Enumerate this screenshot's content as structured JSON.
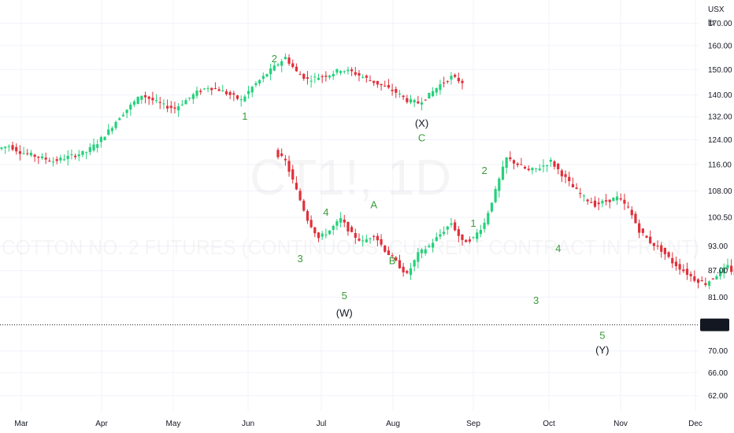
{
  "chart_data": {
    "type": "candlestick",
    "y_scale": "log",
    "ylim": [
      60,
      178
    ],
    "currency": "USX",
    "unit": "lb",
    "y_ticks": [
      "62.00",
      "66.00",
      "70.00",
      "75.11",
      "81.00",
      "87.00",
      "93.00",
      "100.50",
      "108.00",
      "116.00",
      "124.00",
      "132.00",
      "140.00",
      "150.00",
      "160.00",
      "170.00"
    ],
    "y_tick_values": [
      62,
      66,
      70,
      75.11,
      81,
      87,
      93,
      100.5,
      108,
      116,
      124,
      132,
      140,
      150,
      160,
      170
    ],
    "x_ticks": [
      "Mar",
      "Apr",
      "May",
      "Jun",
      "Jul",
      "Aug",
      "Sep",
      "Oct",
      "Nov",
      "Dec"
    ],
    "last_price": "75.11",
    "last_price_value": 75.11,
    "last_price_color": "#131722",
    "up_color": "#26d07c",
    "down_color": "#e0303a",
    "watermark_symbol": "CT1!, 1D",
    "watermark_name": "COTTON NO. 2 FUTURES (CONTINUOUS: CURRENT CONTRACT IN FRONT)",
    "segments": [
      {
        "start_day": 0,
        "points": [
          121,
          122,
          120,
          119,
          118,
          117,
          118,
          119,
          120,
          123,
          127,
          132,
          136,
          140,
          138,
          136,
          135,
          138,
          141,
          143,
          142,
          140,
          138,
          143,
          147,
          151,
          155,
          149,
          146,
          147,
          148,
          150,
          149,
          147,
          145,
          143,
          141,
          138,
          137,
          140,
          144,
          147,
          145
        ]
      },
      {
        "start_day": 75,
        "points": [
          120,
          117,
          108,
          100,
          95,
          97,
          100,
          96,
          94,
          96,
          92,
          89,
          86,
          91,
          93,
          96,
          99,
          94,
          95,
          99,
          108,
          118,
          116,
          114,
          115,
          117,
          113,
          109,
          106,
          104,
          105,
          106,
          103,
          97,
          94,
          92,
          89,
          87,
          85,
          84,
          86,
          88,
          85,
          83,
          81,
          79,
          78,
          77,
          76.2,
          75.11
        ]
      }
    ],
    "annotations": [
      {
        "text": "1",
        "day": 66,
        "price": 131,
        "style": "wave"
      },
      {
        "text": "2",
        "day": 74,
        "price": 153,
        "style": "wave"
      },
      {
        "text": "3",
        "day": 81,
        "price": 89,
        "style": "wave"
      },
      {
        "text": "4",
        "day": 88,
        "price": 101,
        "style": "wave"
      },
      {
        "text": "5",
        "day": 93,
        "price": 80.5,
        "style": "wave"
      },
      {
        "text": "(W)",
        "day": 93,
        "price": 76.8,
        "style": "wave-big"
      },
      {
        "text": "A",
        "day": 101,
        "price": 103,
        "style": "wave"
      },
      {
        "text": "B",
        "day": 106,
        "price": 88.5,
        "style": "wave"
      },
      {
        "text": "(X)",
        "day": 114,
        "price": 128.5,
        "style": "wave-big"
      },
      {
        "text": "C",
        "day": 114,
        "price": 123.5,
        "style": "wave"
      },
      {
        "text": "1",
        "day": 128,
        "price": 98,
        "style": "wave"
      },
      {
        "text": "2",
        "day": 131,
        "price": 113,
        "style": "wave"
      },
      {
        "text": "3",
        "day": 145,
        "price": 79.5,
        "style": "wave"
      },
      {
        "text": "4",
        "day": 151,
        "price": 91.5,
        "style": "wave"
      },
      {
        "text": "5",
        "day": 163,
        "price": 72.3,
        "style": "wave"
      },
      {
        "text": "(Y)",
        "day": 163,
        "price": 69.5,
        "style": "wave-big"
      }
    ]
  }
}
